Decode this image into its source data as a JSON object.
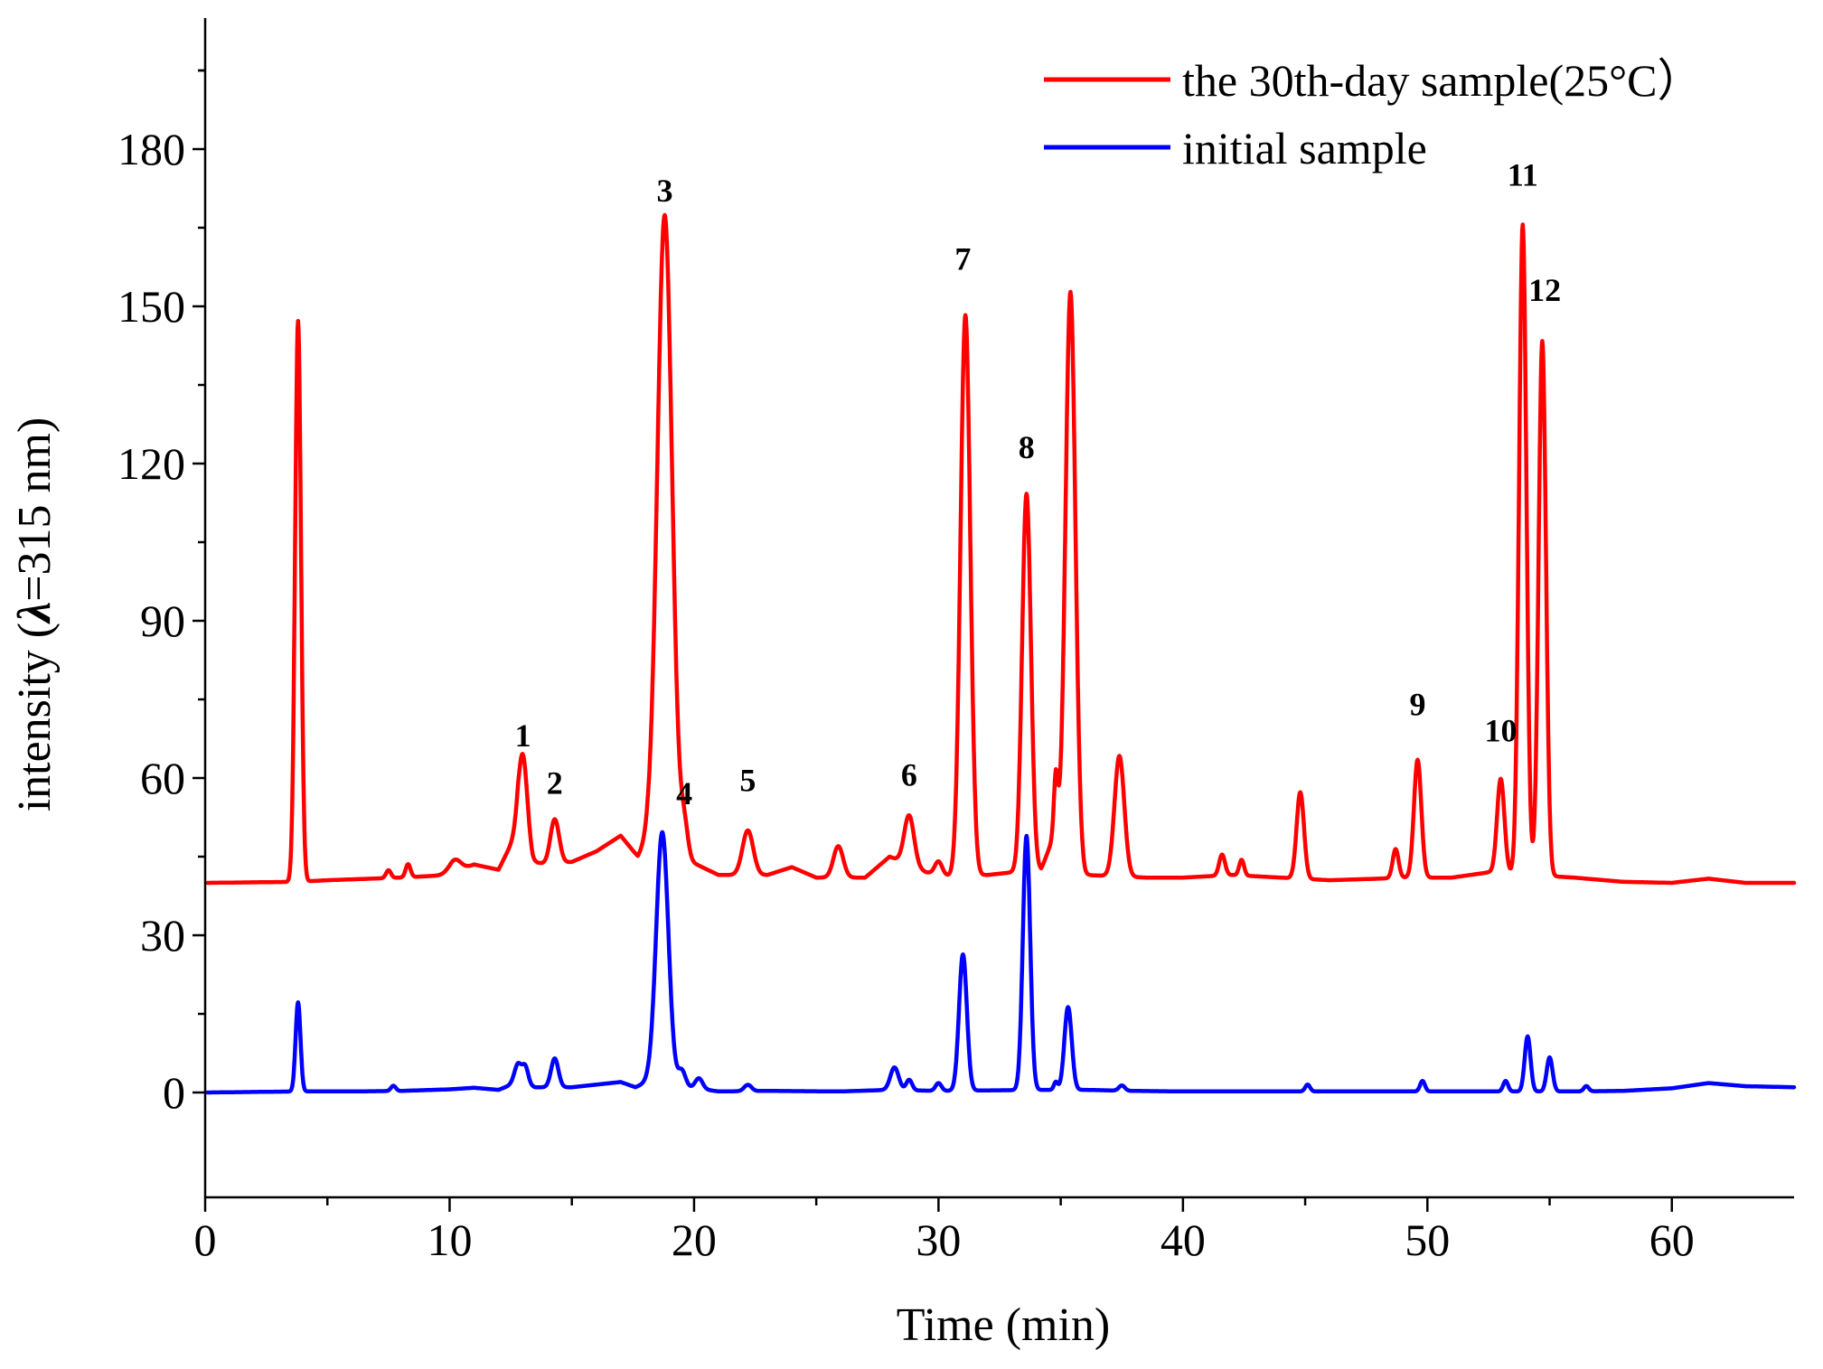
{
  "chart_data": {
    "type": "line",
    "title": "",
    "xlabel": "Time (min)",
    "ylabel_prefix": "intensity (",
    "ylabel_symbol": "λ",
    "ylabel_suffix": "=315 nm)",
    "xlim": [
      0,
      65
    ],
    "ylim": [
      -20,
      205
    ],
    "xticks": [
      0,
      10,
      20,
      30,
      40,
      50,
      60
    ],
    "yticks": [
      0,
      30,
      60,
      90,
      120,
      150,
      180
    ],
    "legend_position": "top-right",
    "series": [
      {
        "name": "the 30th-day sample(25°C）",
        "color": "#ff0000",
        "baseline": 40,
        "points": [
          [
            0.1,
            40
          ],
          [
            3.8,
            40.2
          ],
          [
            5,
            40.5
          ],
          [
            8,
            41
          ],
          [
            10,
            41.5
          ],
          [
            11,
            43.5
          ],
          [
            12,
            42.5
          ],
          [
            12.8,
            50
          ],
          [
            13.4,
            44
          ],
          [
            14.0,
            43.5
          ],
          [
            15,
            44
          ],
          [
            16,
            46
          ],
          [
            17,
            49
          ],
          [
            17.7,
            45
          ],
          [
            18.1,
            48
          ],
          [
            21,
            41.5
          ],
          [
            23,
            41.5
          ],
          [
            24,
            43
          ],
          [
            25,
            41
          ],
          [
            27,
            41
          ],
          [
            28,
            45
          ],
          [
            29.5,
            42
          ],
          [
            30.5,
            41.2
          ],
          [
            32,
            41.5
          ],
          [
            33,
            42
          ],
          [
            34.2,
            42.5
          ],
          [
            34.8,
            50
          ],
          [
            36,
            41.5
          ],
          [
            38.5,
            41
          ],
          [
            40,
            41
          ],
          [
            42,
            41.5
          ],
          [
            44,
            41
          ],
          [
            46,
            40.5
          ],
          [
            48,
            40.8
          ],
          [
            49,
            41
          ],
          [
            51,
            41
          ],
          [
            52.5,
            42
          ],
          [
            56,
            41
          ],
          [
            58,
            40.2
          ],
          [
            60,
            40
          ],
          [
            61.5,
            40.8
          ],
          [
            63,
            40
          ],
          [
            65,
            40
          ]
        ],
        "peaks": [
          [
            3.8,
            147,
            0.12
          ],
          [
            7.5,
            41.5,
            0.1
          ],
          [
            8.3,
            42.5,
            0.1
          ],
          [
            10.2,
            42.5,
            0.25
          ],
          [
            13.0,
            56.5,
            0.18
          ],
          [
            14.3,
            48.5,
            0.18
          ],
          [
            18.8,
            161,
            0.3
          ],
          [
            19.6,
            46,
            0.15
          ],
          [
            22.2,
            48.5,
            0.22
          ],
          [
            25.9,
            46,
            0.2
          ],
          [
            28.8,
            49.5,
            0.2
          ],
          [
            30,
            42.5,
            0.15
          ],
          [
            31.1,
            147,
            0.2
          ],
          [
            33.6,
            112,
            0.18
          ],
          [
            34.8,
            50.5,
            0.08
          ],
          [
            35.4,
            147,
            0.2
          ],
          [
            37.4,
            63,
            0.2
          ],
          [
            41.6,
            44,
            0.12
          ],
          [
            42.4,
            43,
            0.1
          ],
          [
            44.8,
            56.5,
            0.15
          ],
          [
            48.7,
            45.5,
            0.12
          ],
          [
            49.6,
            62.5,
            0.15
          ],
          [
            53.0,
            58,
            0.15
          ],
          [
            53.9,
            164,
            0.15
          ],
          [
            54.7,
            142,
            0.15
          ]
        ]
      },
      {
        "name": "initial sample",
        "color": "#0000ff",
        "baseline": 0,
        "points": [
          [
            0.1,
            0
          ],
          [
            3.8,
            0.2
          ],
          [
            6,
            0.2
          ],
          [
            8,
            0.3
          ],
          [
            10,
            0.6
          ],
          [
            11,
            0.9
          ],
          [
            12,
            0.5
          ],
          [
            12.8,
            2
          ],
          [
            13.5,
            1
          ],
          [
            15,
            1
          ],
          [
            16,
            1.5
          ],
          [
            17,
            2
          ],
          [
            17.6,
            1
          ],
          [
            18.1,
            2
          ],
          [
            19,
            1.5
          ],
          [
            21,
            0.2
          ],
          [
            23,
            0.3
          ],
          [
            26,
            0.2
          ],
          [
            28,
            0.5
          ],
          [
            30,
            0.3
          ],
          [
            32,
            0.4
          ],
          [
            34.5,
            0.5
          ],
          [
            36,
            0.5
          ],
          [
            38,
            0.3
          ],
          [
            40,
            0.2
          ],
          [
            44,
            0.2
          ],
          [
            48,
            0.2
          ],
          [
            52,
            0.2
          ],
          [
            56,
            0.2
          ],
          [
            58,
            0.3
          ],
          [
            60,
            0.8
          ],
          [
            61.5,
            1.8
          ],
          [
            63,
            1.2
          ],
          [
            65,
            1
          ]
        ],
        "peaks": [
          [
            3.8,
            17,
            0.1
          ],
          [
            7.7,
            1,
            0.1
          ],
          [
            12.8,
            3.5,
            0.15
          ],
          [
            13.1,
            3.2,
            0.12
          ],
          [
            14.3,
            5.5,
            0.15
          ],
          [
            18.7,
            48,
            0.25
          ],
          [
            19.5,
            3,
            0.15
          ],
          [
            20.2,
            2,
            0.15
          ],
          [
            22.2,
            1.2,
            0.15
          ],
          [
            28.2,
            4.3,
            0.17
          ],
          [
            28.8,
            2,
            0.12
          ],
          [
            30,
            1.5,
            0.12
          ],
          [
            31.0,
            26,
            0.16
          ],
          [
            33.6,
            48.5,
            0.15
          ],
          [
            35.3,
            15.8,
            0.15
          ],
          [
            34.8,
            1.5,
            0.08
          ],
          [
            37.5,
            1,
            0.12
          ],
          [
            45.1,
            1.3,
            0.1
          ],
          [
            49.8,
            2,
            0.1
          ],
          [
            53.2,
            2,
            0.1
          ],
          [
            54.1,
            10.5,
            0.12
          ],
          [
            55.0,
            6.5,
            0.12
          ],
          [
            56.5,
            1,
            0.1
          ]
        ]
      }
    ],
    "annotations": [
      {
        "text": "1",
        "x": 13.0,
        "y": 66
      },
      {
        "text": "2",
        "x": 14.3,
        "y": 57
      },
      {
        "text": "3",
        "x": 18.8,
        "y": 170
      },
      {
        "text": "4",
        "x": 19.6,
        "y": 55
      },
      {
        "text": "5",
        "x": 22.2,
        "y": 57.5
      },
      {
        "text": "6",
        "x": 28.8,
        "y": 58.5
      },
      {
        "text": "7",
        "x": 31.0,
        "y": 157
      },
      {
        "text": "8",
        "x": 33.6,
        "y": 121
      },
      {
        "text": "9",
        "x": 49.6,
        "y": 72
      },
      {
        "text": "10",
        "x": 53.0,
        "y": 67
      },
      {
        "text": "11",
        "x": 53.9,
        "y": 173
      },
      {
        "text": "12",
        "x": 54.8,
        "y": 151
      }
    ]
  }
}
